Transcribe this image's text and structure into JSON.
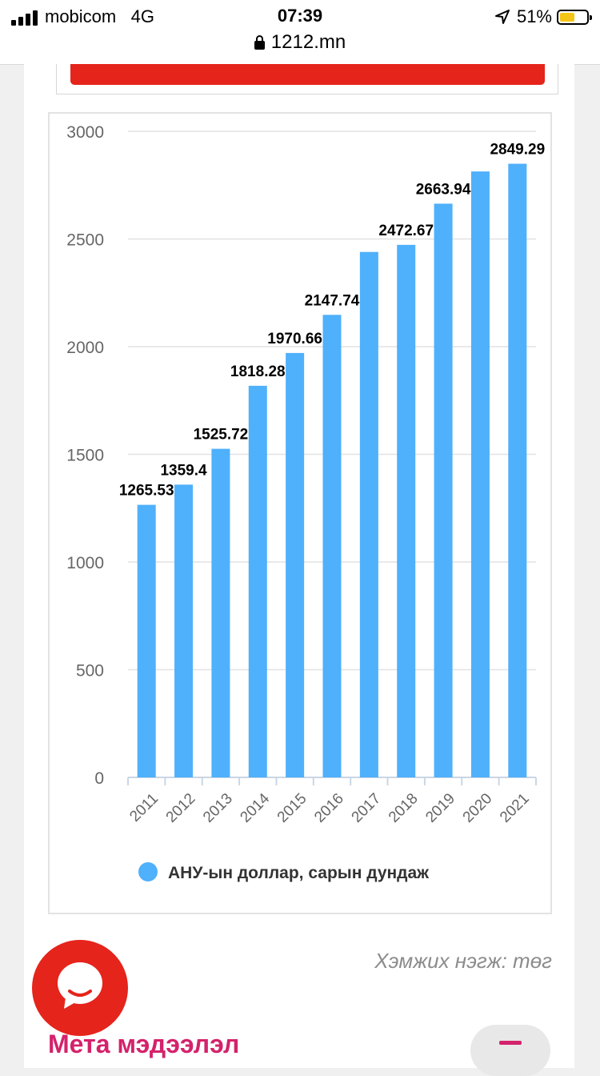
{
  "status_bar": {
    "carrier": "mobicom",
    "network": "4G",
    "time": "07:39",
    "url": "1212.mn",
    "battery": "51%"
  },
  "chart_data": {
    "type": "bar",
    "title": "",
    "xlabel": "",
    "ylabel": "",
    "categories": [
      "2011",
      "2012",
      "2013",
      "2014",
      "2015",
      "2016",
      "2017",
      "2018",
      "2019",
      "2020",
      "2021"
    ],
    "series": [
      {
        "name": "АНУ-ын доллар, сарын дундаж",
        "color": "#4fb0fb",
        "values": [
          1265.53,
          1359.4,
          1525.72,
          1818.28,
          1970.66,
          2147.74,
          2439.78,
          2472.67,
          2663.94,
          2813.6,
          2849.29
        ],
        "labels": [
          "1265.53",
          "1359.4",
          "1525.72",
          "1818.28",
          "1970.66",
          "2147.74",
          "",
          "2472.67",
          "2663.94",
          "",
          "2849.29"
        ]
      }
    ],
    "y_ticks": [
      "0",
      "500",
      "1000",
      "1500",
      "2000",
      "2500",
      "3000"
    ],
    "ylim": [
      0,
      3000
    ],
    "grid": true,
    "legend": "bottom-center"
  },
  "unit_note": "Хэмжих нэгж: төг",
  "section_title": "Мета мэдээлэл",
  "colors": {
    "accent_red": "#e5241b",
    "accent_pink": "#d4226b",
    "bar_blue": "#4fb0fb"
  }
}
